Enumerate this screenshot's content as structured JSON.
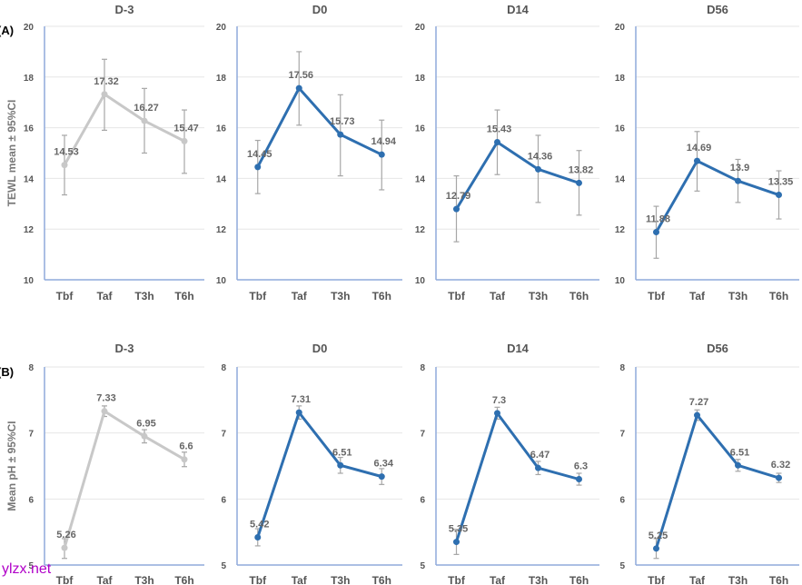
{
  "panel_labels": {
    "top": "(A)",
    "bottom": "(B)"
  },
  "watermark": "ylzx.net",
  "colors": {
    "gray_series": "#c8c8c8",
    "blue_series": "#2e6fb0",
    "error_bar": "#a6a6a6",
    "axis": "#8faadc",
    "grid": "#e6e6e6"
  },
  "chart_data": [
    {
      "type": "line",
      "row": "A",
      "title": "D-3",
      "ylabel": "TEWL mean ± 95%CI",
      "ylim": [
        10,
        20
      ],
      "yticks": [
        10,
        12,
        14,
        16,
        18,
        20
      ],
      "categories": [
        "Tbf",
        "Taf",
        "T3h",
        "T6h"
      ],
      "series_color": "gray",
      "values": [
        14.53,
        17.32,
        16.27,
        15.47
      ],
      "labels": [
        "14.53",
        "17.32",
        "16.27",
        "15.47"
      ],
      "ci_low": [
        13.35,
        15.9,
        15.0,
        14.2
      ],
      "ci_high": [
        15.7,
        18.7,
        17.55,
        16.7
      ]
    },
    {
      "type": "line",
      "row": "A",
      "title": "D0",
      "ylabel": "",
      "ylim": [
        10,
        20
      ],
      "yticks": [
        10,
        12,
        14,
        16,
        18,
        20
      ],
      "categories": [
        "Tbf",
        "Taf",
        "T3h",
        "T6h"
      ],
      "series_color": "blue",
      "values": [
        14.45,
        17.56,
        15.73,
        14.94
      ],
      "labels": [
        "14.45",
        "17.56",
        "15.73",
        "14.94"
      ],
      "ci_low": [
        13.4,
        16.1,
        14.1,
        13.55
      ],
      "ci_high": [
        15.5,
        19.0,
        17.3,
        16.3
      ]
    },
    {
      "type": "line",
      "row": "A",
      "title": "D14",
      "ylabel": "",
      "ylim": [
        10,
        20
      ],
      "yticks": [
        10,
        12,
        14,
        16,
        18,
        20
      ],
      "categories": [
        "Tbf",
        "Taf",
        "T3h",
        "T6h"
      ],
      "series_color": "blue",
      "values": [
        12.79,
        15.43,
        14.36,
        13.82
      ],
      "labels": [
        "12.79",
        "15.43",
        "14.36",
        "13.82"
      ],
      "ci_low": [
        11.5,
        14.15,
        13.05,
        12.55
      ],
      "ci_high": [
        14.1,
        16.7,
        15.7,
        15.1
      ]
    },
    {
      "type": "line",
      "row": "A",
      "title": "D56",
      "ylabel": "",
      "ylim": [
        10,
        20
      ],
      "yticks": [
        10,
        12,
        14,
        16,
        18,
        20
      ],
      "categories": [
        "Tbf",
        "Taf",
        "T3h",
        "T6h"
      ],
      "series_color": "blue",
      "values": [
        11.88,
        14.69,
        13.9,
        13.35
      ],
      "labels": [
        "11.88",
        "14.69",
        "13.9",
        "13.35"
      ],
      "ci_low": [
        10.85,
        13.5,
        13.05,
        12.4
      ],
      "ci_high": [
        12.9,
        15.85,
        14.75,
        14.3
      ]
    },
    {
      "type": "line",
      "row": "B",
      "title": "D-3",
      "ylabel": "Mean pH ± 95%CI",
      "ylim": [
        5,
        8
      ],
      "yticks": [
        5,
        6,
        7,
        8
      ],
      "categories": [
        "Tbf",
        "Taf",
        "T3h",
        "T6h"
      ],
      "series_color": "gray",
      "values": [
        5.26,
        7.33,
        6.95,
        6.6
      ],
      "labels": [
        "5.26",
        "7.33",
        "6.95",
        "6.6"
      ],
      "ci_low": [
        5.1,
        7.25,
        6.85,
        6.49
      ],
      "ci_high": [
        5.4,
        7.41,
        7.05,
        6.71
      ]
    },
    {
      "type": "line",
      "row": "B",
      "title": "D0",
      "ylabel": "",
      "ylim": [
        5,
        8
      ],
      "yticks": [
        5,
        6,
        7,
        8
      ],
      "categories": [
        "Tbf",
        "Taf",
        "T3h",
        "T6h"
      ],
      "series_color": "blue",
      "values": [
        5.42,
        7.31,
        6.51,
        6.34
      ],
      "labels": [
        "5.42",
        "7.31",
        "6.51",
        "6.34"
      ],
      "ci_low": [
        5.29,
        7.21,
        6.39,
        6.22
      ],
      "ci_high": [
        5.55,
        7.41,
        6.63,
        6.46
      ]
    },
    {
      "type": "line",
      "row": "B",
      "title": "D14",
      "ylabel": "",
      "ylim": [
        5,
        8
      ],
      "yticks": [
        5,
        6,
        7,
        8
      ],
      "categories": [
        "Tbf",
        "Taf",
        "T3h",
        "T6h"
      ],
      "series_color": "blue",
      "values": [
        5.35,
        7.3,
        6.47,
        6.3
      ],
      "labels": [
        "5.35",
        "7.3",
        "6.47",
        "6.3"
      ],
      "ci_low": [
        5.16,
        7.21,
        6.37,
        6.21
      ],
      "ci_high": [
        5.54,
        7.39,
        6.57,
        6.39
      ]
    },
    {
      "type": "line",
      "row": "B",
      "title": "D56",
      "ylabel": "",
      "ylim": [
        5,
        8
      ],
      "yticks": [
        5,
        6,
        7,
        8
      ],
      "categories": [
        "Tbf",
        "Taf",
        "T3h",
        "T6h"
      ],
      "series_color": "blue",
      "values": [
        5.25,
        7.27,
        6.51,
        6.32
      ],
      "labels": [
        "5.25",
        "7.27",
        "6.51",
        "6.32"
      ],
      "ci_low": [
        5.1,
        7.19,
        6.42,
        6.25
      ],
      "ci_high": [
        5.4,
        7.35,
        6.6,
        6.39
      ]
    }
  ]
}
